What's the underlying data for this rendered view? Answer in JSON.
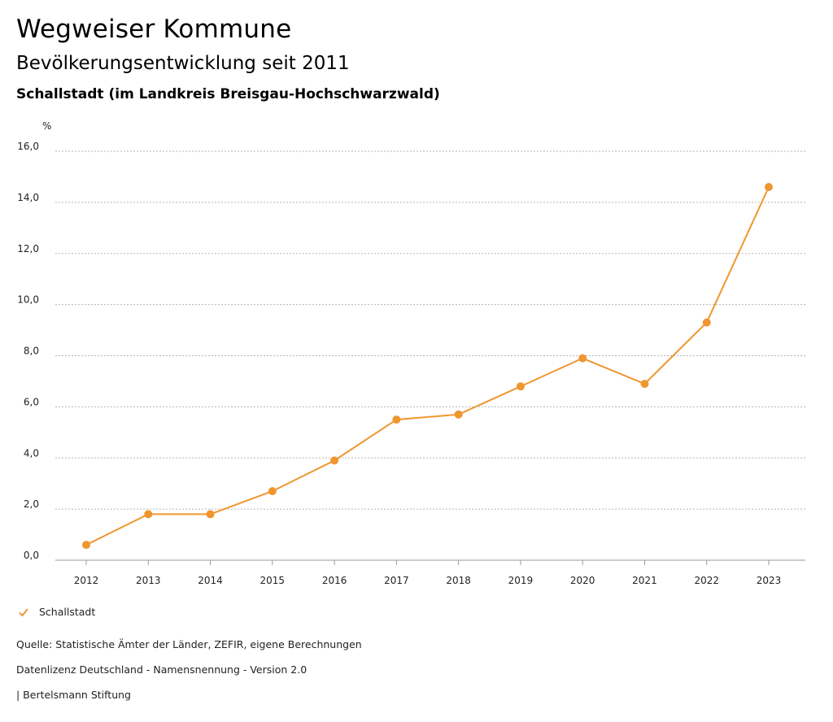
{
  "header": {
    "title": "Wegweiser Kommune",
    "subtitle": "Bevölkerungsentwicklung seit 2011",
    "region": "Schallstadt (im Landkreis Breisgau-Hochschwarzwald)"
  },
  "chart_data": {
    "type": "line",
    "title": "",
    "xlabel": "",
    "ylabel": "%",
    "x": [
      "2012",
      "2013",
      "2014",
      "2015",
      "2016",
      "2017",
      "2018",
      "2019",
      "2020",
      "2021",
      "2022",
      "2023"
    ],
    "series": [
      {
        "name": "Schallstadt",
        "color": "#f0962f",
        "values": [
          0.6,
          1.8,
          1.8,
          2.7,
          3.9,
          5.5,
          5.7,
          6.8,
          7.9,
          6.9,
          9.3,
          14.6
        ]
      }
    ],
    "yticks": [
      "0,0",
      "2,0",
      "4,0",
      "6,0",
      "8,0",
      "10,0",
      "12,0",
      "14,0",
      "16,0"
    ],
    "ylim": [
      0,
      16
    ],
    "grid": true,
    "legend_position": "bottom-left"
  },
  "legend": {
    "icon": "check-icon",
    "label": "Schallstadt"
  },
  "footer": {
    "source": "Quelle: Statistische Ämter der Länder, ZEFIR, eigene Berechnungen",
    "license": "Datenlizenz Deutschland - Namensnennung - Version 2.0",
    "publisher": "| Bertelsmann Stiftung"
  }
}
